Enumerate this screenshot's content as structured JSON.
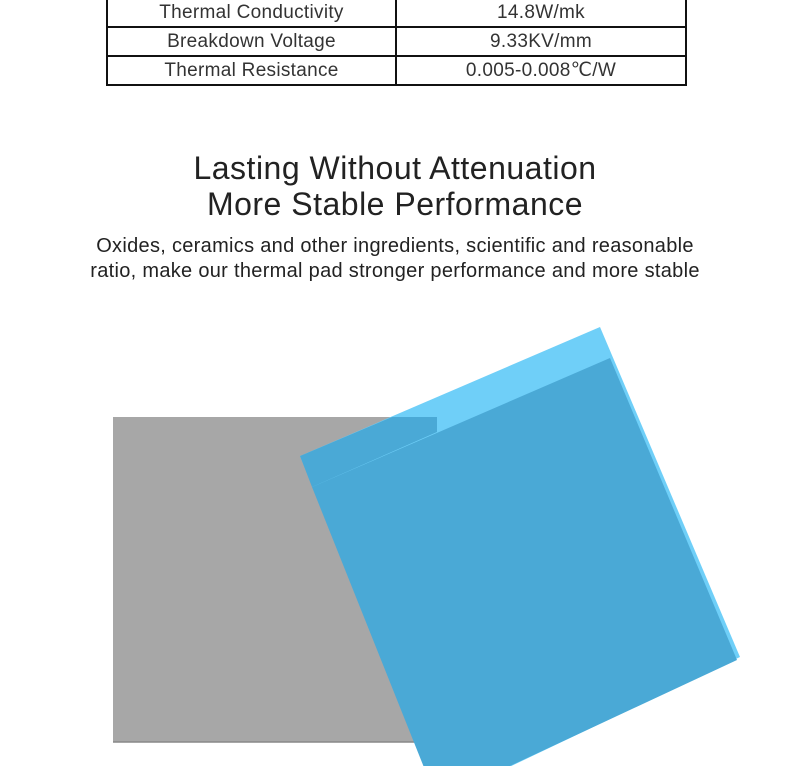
{
  "spec_table": {
    "rows": [
      {
        "property": "Thermal Conductivity",
        "value": "14.8W/mk"
      },
      {
        "property": "Breakdown Voltage",
        "value": "9.33KV/mm"
      },
      {
        "property": "Thermal Resistance",
        "value": "0.005-0.008℃/W"
      }
    ]
  },
  "headline": {
    "line1": "Lasting Without Attenuation",
    "line2": "More Stable Performance"
  },
  "description": {
    "line1": "Oxides, ceramics and other ingredients, scientific and reasonable",
    "line2": "ratio, make our thermal pad stronger performance and more stable"
  },
  "colors": {
    "gray_pad": "#a7a7a7",
    "blue_pad": "#4aa9d6",
    "blue_edge": "#6fcff8"
  }
}
